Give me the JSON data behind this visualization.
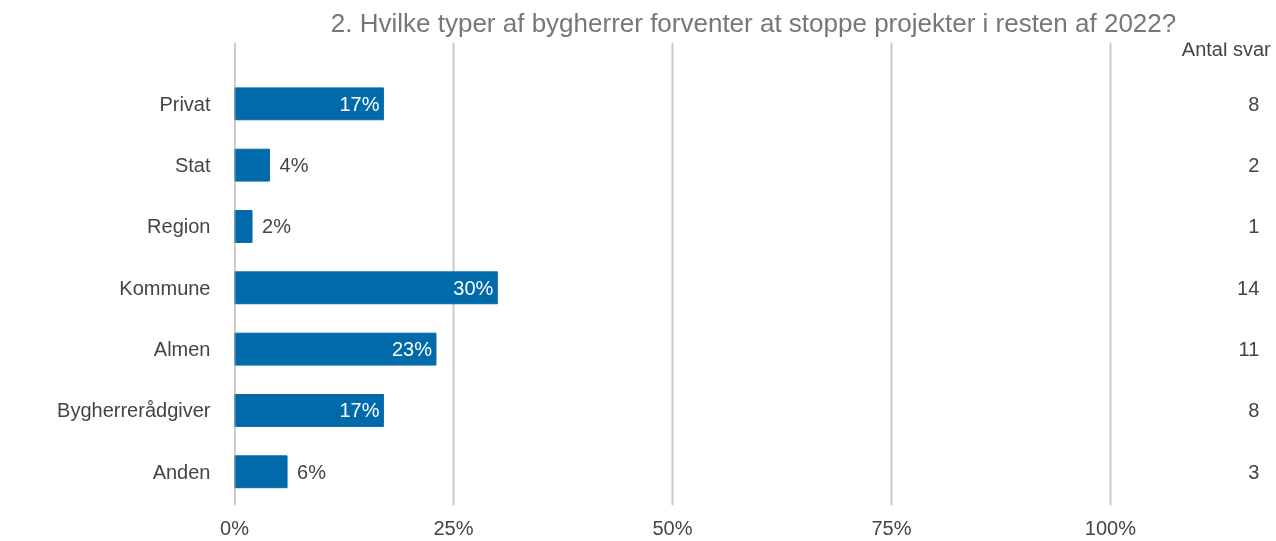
{
  "chart_data": {
    "type": "bar",
    "orientation": "horizontal",
    "title": "2. Hvilke typer af bygherrer forventer at stoppe projekter i resten af 2022?",
    "categories": [
      "Privat",
      "Stat",
      "Region",
      "Kommune",
      "Almen",
      "Bygherrerådgiver",
      "Anden"
    ],
    "values": [
      17,
      4,
      2,
      30,
      23,
      17,
      6
    ],
    "value_labels": [
      "17%",
      "4%",
      "2%",
      "30%",
      "23%",
      "17%",
      "6%"
    ],
    "color": "#006aaa",
    "xlim": [
      0,
      100
    ],
    "xticks": [
      {
        "value": 0,
        "label": "0%"
      },
      {
        "value": 25,
        "label": "25%"
      },
      {
        "value": 50,
        "label": "50%"
      },
      {
        "value": 75,
        "label": "75%"
      },
      {
        "value": 100,
        "label": "100%"
      }
    ],
    "grid": "x",
    "annotations": [
      "Antal svar",
      "8",
      "2",
      "1",
      "14",
      "11",
      "8",
      "3"
    ]
  }
}
